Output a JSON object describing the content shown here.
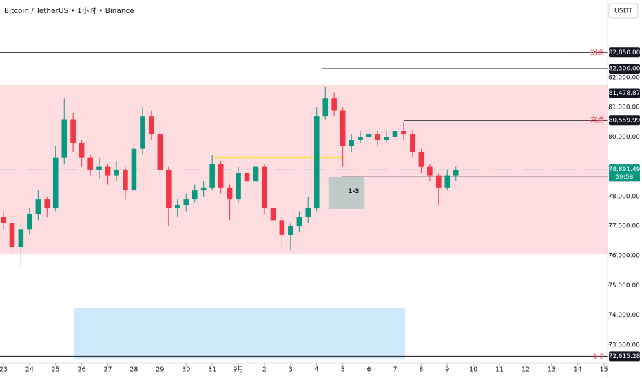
{
  "chart_data": {
    "type": "candlestick",
    "title": "Bitcoin / TetherUS • 1小时 • Binance",
    "currency": "USDT",
    "up_color": "#089981",
    "down_color": "#f23645",
    "x": [
      0,
      0.33,
      0.67,
      1,
      1.33,
      1.67,
      2,
      2.33,
      2.67,
      3,
      3.33,
      3.67,
      4,
      4.33,
      4.67,
      5,
      5.33,
      5.67,
      6,
      6.33,
      6.67,
      7,
      7.33,
      7.67,
      8,
      8.33,
      8.67,
      9,
      9.33,
      9.67,
      10,
      10.33,
      10.67,
      11,
      11.33,
      11.67,
      12,
      12.33,
      12.67,
      13,
      13.33,
      13.67,
      14,
      14.33,
      14.67,
      15,
      15.33,
      15.67,
      16,
      16.33,
      16.67,
      17,
      17.33
    ],
    "open": [
      77300,
      77100,
      76300,
      76900,
      77400,
      77900,
      77600,
      79300,
      80600,
      79800,
      79300,
      78900,
      79000,
      78700,
      78900,
      78200,
      79600,
      80700,
      80100,
      78900,
      77600,
      77700,
      77900,
      78200,
      78300,
      79100,
      78300,
      77900,
      78800,
      78500,
      79000,
      77600,
      77200,
      76700,
      77000,
      77300,
      77600,
      80700,
      81300,
      80900,
      79700,
      79900,
      80000,
      80100,
      79900,
      80000,
      80200,
      80100,
      79500,
      79000,
      78700,
      78300,
      78700
    ],
    "high": [
      77500,
      77200,
      77100,
      77600,
      78200,
      78000,
      79700,
      81300,
      80800,
      79900,
      79400,
      79300,
      79100,
      79200,
      79000,
      79800,
      81000,
      80900,
      80200,
      79000,
      77900,
      78100,
      78400,
      78500,
      79400,
      79200,
      78400,
      79000,
      79000,
      79300,
      79100,
      77800,
      77300,
      77100,
      77500,
      78000,
      81000,
      81700,
      81500,
      81000,
      80100,
      80200,
      80300,
      80200,
      80200,
      80400,
      80500,
      80200,
      79600,
      79100,
      78800,
      78900,
      79000
    ],
    "low": [
      76900,
      75900,
      75600,
      76700,
      77200,
      77300,
      77500,
      79100,
      79500,
      79000,
      78700,
      78600,
      78400,
      78500,
      77900,
      78100,
      79400,
      79900,
      78700,
      77000,
      77300,
      77500,
      77800,
      78000,
      78200,
      78100,
      77200,
      77800,
      78300,
      78400,
      77400,
      76900,
      76300,
      76200,
      76800,
      77100,
      77500,
      80600,
      80700,
      79000,
      79500,
      79800,
      79900,
      79700,
      79800,
      79900,
      79900,
      79300,
      78800,
      78500,
      77700,
      78200,
      78500
    ],
    "close": [
      77100,
      76300,
      76900,
      77400,
      77900,
      77600,
      79300,
      80600,
      79800,
      79300,
      78900,
      79000,
      78700,
      78900,
      78200,
      79600,
      80700,
      80100,
      78900,
      77600,
      77700,
      77900,
      78200,
      78300,
      79100,
      78300,
      77900,
      78800,
      78500,
      79000,
      77600,
      77200,
      76700,
      77000,
      77300,
      77600,
      80700,
      81300,
      80900,
      79700,
      79900,
      80000,
      80100,
      79900,
      80000,
      80200,
      80100,
      79500,
      79000,
      78700,
      78300,
      78700,
      78891.49
    ],
    "xlim": [
      -0.13,
      23.14
    ],
    "xticks": [
      {
        "value": 0,
        "label": "23"
      },
      {
        "value": 1,
        "label": "24"
      },
      {
        "value": 2,
        "label": "25"
      },
      {
        "value": 3,
        "label": "26"
      },
      {
        "value": 4,
        "label": "27"
      },
      {
        "value": 5,
        "label": "28"
      },
      {
        "value": 6,
        "label": "29"
      },
      {
        "value": 7,
        "label": "30"
      },
      {
        "value": 8,
        "label": "31"
      },
      {
        "value": 9,
        "label": "9月"
      },
      {
        "value": 10,
        "label": "2"
      },
      {
        "value": 11,
        "label": "3"
      },
      {
        "value": 12,
        "label": "4"
      },
      {
        "value": 13,
        "label": "5"
      },
      {
        "value": 14,
        "label": "6"
      },
      {
        "value": 15,
        "label": "7"
      },
      {
        "value": 16,
        "label": "8"
      },
      {
        "value": 17,
        "label": "9"
      },
      {
        "value": 18,
        "label": "10"
      },
      {
        "value": 19,
        "label": "11"
      },
      {
        "value": 20,
        "label": "12"
      },
      {
        "value": 21,
        "label": "13"
      },
      {
        "value": 22,
        "label": "14"
      },
      {
        "value": 23,
        "label": "15"
      }
    ],
    "ylim": [
      72347,
      84616
    ],
    "yticks": [
      {
        "value": 73000,
        "label": "73,000.00"
      },
      {
        "value": 74000,
        "label": "74,000.00"
      },
      {
        "value": 75000,
        "label": "75,000.00"
      },
      {
        "value": 76000,
        "label": "76,000.00"
      },
      {
        "value": 77000,
        "label": "77,000.00"
      },
      {
        "value": 78000,
        "label": "78,000.00"
      },
      {
        "value": 79000,
        "label": "79,000.00"
      },
      {
        "value": 80000,
        "label": "80,000.00"
      },
      {
        "value": 81000,
        "label": "81,000.00"
      },
      {
        "value": 82000,
        "label": "82,000.00"
      }
    ],
    "zones": [
      {
        "x": [
          -0.13,
          23.14
        ],
        "y": [
          76074,
          81745
        ],
        "color": "rgba(242,54,69,0.17)"
      },
      {
        "x": [
          2.69,
          15.38
        ],
        "y": [
          72532,
          74245
        ],
        "color": "rgba(33,150,243,0.22)"
      },
      {
        "x": [
          12.45,
          13.83
        ],
        "y": [
          77579,
          78644
        ],
        "color": "rgba(8,153,129,0.25)",
        "label": "1-3"
      }
    ],
    "segments": [
      {
        "x": [
          8.05,
          12.98
        ],
        "value": 79315,
        "color": "#ffe066"
      }
    ],
    "price_lines": [
      {
        "value": 82850,
        "label": "82,850.00",
        "from": -0.13,
        "note": "拐点"
      },
      {
        "value": 82300,
        "label": "82,300.00",
        "from": 12.22
      },
      {
        "value": 81478.87,
        "label": "81,478.87",
        "from": 5.38
      },
      {
        "value": 80559.99,
        "label": "80,559.99",
        "from": 15.33,
        "note": "高点"
      },
      {
        "value": 78660,
        "label": "78,660.00",
        "from": 12.98
      },
      {
        "value": 72615.28,
        "label": "72,615.28",
        "from": -0.13,
        "note": "1-2"
      }
    ],
    "current_price": {
      "value": 78891.49,
      "label": "78,891.49",
      "countdown": "59:58",
      "color": "#089981"
    }
  }
}
